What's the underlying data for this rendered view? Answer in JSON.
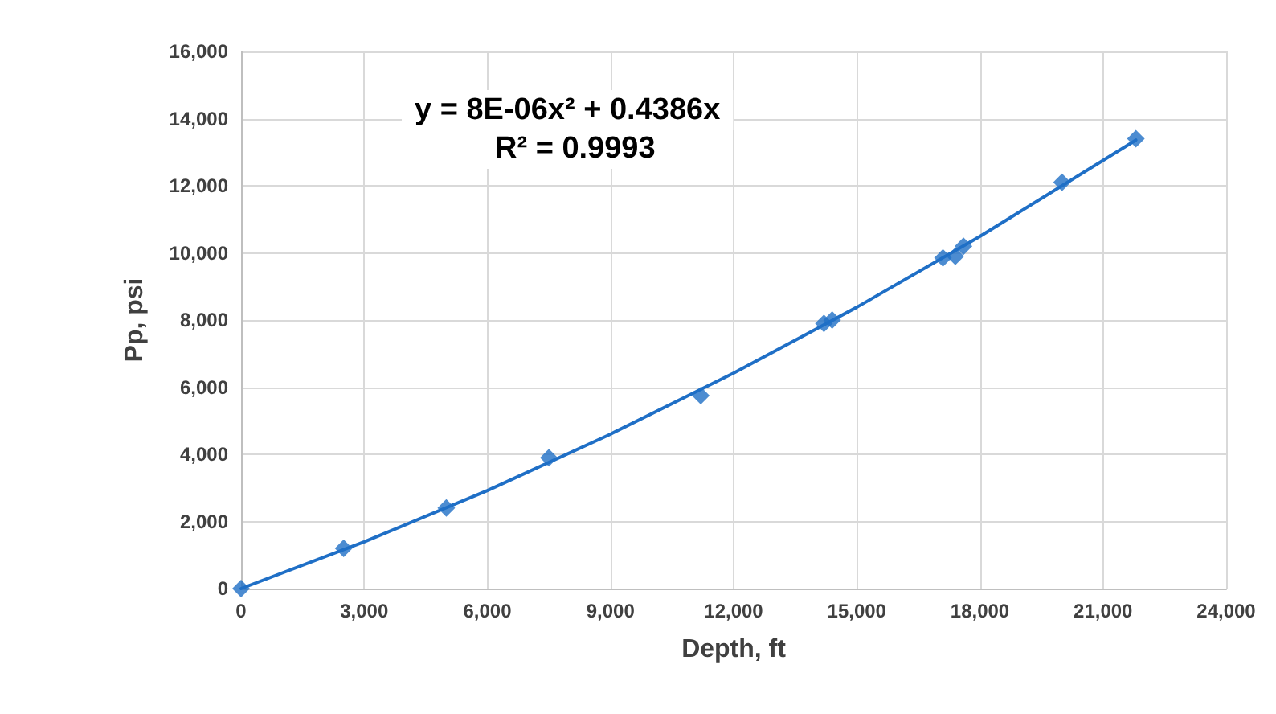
{
  "chart_data": {
    "type": "scatter",
    "xlabel": "Depth, ft",
    "ylabel": "Pp, psi",
    "annotations": [
      "y = 8E-06x² + 0.4386x",
      "R² = 0.9993"
    ],
    "series": [
      {
        "color": "#1f6fc6",
        "marker": "diamond",
        "x": [
          0,
          2500,
          5000,
          7500,
          11200,
          14200,
          14400,
          17100,
          17400,
          17600,
          20000,
          21800
        ],
        "values": [
          0,
          1200,
          2400,
          3900,
          5750,
          7900,
          8000,
          9850,
          9900,
          10200,
          12100,
          13400
        ]
      },
      {
        "type": "line",
        "color": "#1f6fc6",
        "marker": "none",
        "x": [
          0,
          3000,
          6000,
          9000,
          12000,
          15000,
          18000,
          21800
        ],
        "values": [
          0,
          1390,
          2920,
          4600,
          6420,
          8380,
          10490,
          13360
        ]
      }
    ],
    "xlim": [
      0,
      24000
    ],
    "xticks": [
      0,
      {
        "value": 3000,
        "label": "3,000"
      },
      {
        "value": 6000,
        "label": "6,000"
      },
      {
        "value": 9000,
        "label": "9,000"
      },
      {
        "value": 12000,
        "label": "12,000"
      },
      {
        "value": 15000,
        "label": "15,000"
      },
      {
        "value": 18000,
        "label": "18,000"
      },
      {
        "value": 21000,
        "label": "21,000"
      },
      {
        "value": 24000,
        "label": "24,000"
      }
    ],
    "ylim": [
      0,
      16000
    ],
    "yticks": [
      0,
      {
        "value": 2000,
        "label": "2,000"
      },
      {
        "value": 4000,
        "label": "4,000"
      },
      {
        "value": 6000,
        "label": "6,000"
      },
      {
        "value": 8000,
        "label": "8,000"
      },
      {
        "value": 10000,
        "label": "10,000"
      },
      {
        "value": 12000,
        "label": "12,000"
      },
      {
        "value": 14000,
        "label": "14,000"
      },
      {
        "value": 16000,
        "label": "16,000"
      }
    ],
    "grid": true
  }
}
